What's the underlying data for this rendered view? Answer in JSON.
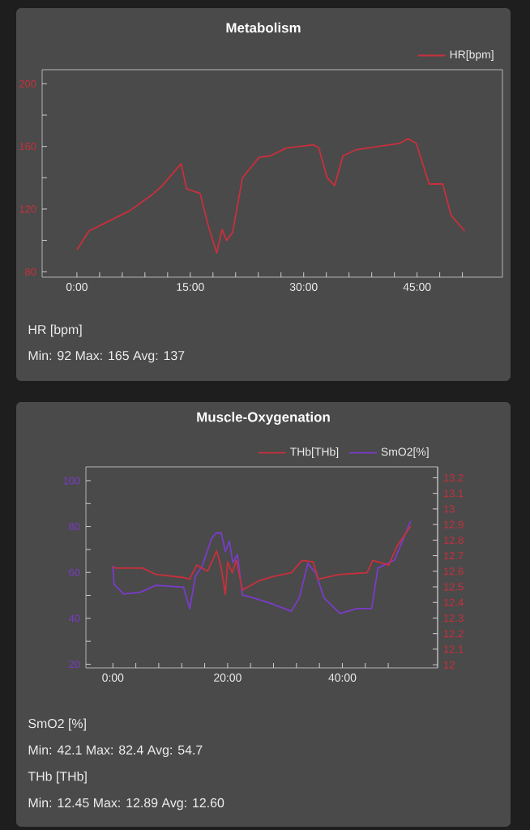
{
  "chart_data": [
    {
      "type": "line",
      "title": "Metabolism",
      "series": [
        {
          "name": "HR[bpm]",
          "color": "#c8303c",
          "x": [
            0,
            1.6,
            4.1,
            7,
            9.9,
            11.3,
            13.8,
            14.5,
            16.3,
            17.4,
            18.5,
            19.2,
            19.8,
            20.6,
            21.9,
            24.1,
            25.6,
            27.7,
            31.3,
            32,
            33.1,
            34.1,
            35.2,
            37,
            39.9,
            42.7,
            43.8,
            44.9,
            46.6,
            48.4,
            49.5,
            51.3
          ],
          "values": [
            94,
            106,
            112,
            119,
            129,
            135,
            149,
            133,
            130,
            109,
            92,
            107,
            100,
            105,
            140,
            153,
            154,
            159,
            161,
            159,
            140,
            135,
            154,
            158,
            160,
            162,
            165,
            162,
            136,
            136,
            116,
            106
          ]
        }
      ],
      "xlim": [
        -4.6,
        56.3
      ],
      "xticks": [
        {
          "value": 0,
          "label": "0:00"
        },
        {
          "value": 3,
          "label": null
        },
        {
          "value": 6,
          "label": null
        },
        {
          "value": 9,
          "label": null
        },
        {
          "value": 12,
          "label": null
        },
        {
          "value": 15,
          "label": "15:00"
        },
        {
          "value": 18,
          "label": null
        },
        {
          "value": 21,
          "label": null
        },
        {
          "value": 24,
          "label": null
        },
        {
          "value": 27,
          "label": null
        },
        {
          "value": 30,
          "label": "30:00"
        },
        {
          "value": 33,
          "label": null
        },
        {
          "value": 36,
          "label": null
        },
        {
          "value": 39,
          "label": null
        },
        {
          "value": 42,
          "label": null
        },
        {
          "value": 45,
          "label": "45:00"
        },
        {
          "value": 48,
          "label": null
        },
        {
          "value": 51,
          "label": null
        }
      ],
      "ylim": [
        76.5,
        209
      ],
      "yticks": [
        80,
        {
          "value": 100,
          "label": null
        },
        120,
        {
          "value": 140,
          "label": null
        },
        160,
        {
          "value": 180,
          "label": null
        },
        200
      ],
      "legend": "top right",
      "annotations": [
        "HR [bpm]",
        "Min: 92 Max: 165 Avg: 137"
      ]
    },
    {
      "type": "line",
      "title": "Muscle-Oxygenation",
      "series": [
        {
          "name": "THb[THb]",
          "color": "#c8303c",
          "axis": "y2",
          "x": [
            0,
            0.5,
            5.2,
            7.5,
            12.3,
            13.4,
            14.6,
            16.5,
            18.1,
            18.9,
            19.6,
            20,
            20.8,
            21.5,
            22.6,
            25.5,
            28.3,
            31.1,
            33,
            34.9,
            35.8,
            39.6,
            44.3,
            45.3,
            48.1,
            49.5,
            51.9
          ],
          "values": [
            12.63,
            12.62,
            12.62,
            12.58,
            12.56,
            12.55,
            12.64,
            12.6,
            12.73,
            12.62,
            12.45,
            12.66,
            12.59,
            12.67,
            12.48,
            12.54,
            12.57,
            12.59,
            12.67,
            12.66,
            12.55,
            12.58,
            12.59,
            12.67,
            12.64,
            12.76,
            12.89
          ]
        },
        {
          "name": "SmO2[%]",
          "color": "#7a3cc8",
          "x": [
            0,
            0.2,
            1.9,
            4.7,
            7.5,
            12.3,
            13.4,
            14.4,
            15.6,
            17.2,
            18,
            18.9,
            19.6,
            20.3,
            20.9,
            21.7,
            22.6,
            24.5,
            27.4,
            31.1,
            32.5,
            34,
            35.4,
            36.8,
            39.6,
            42.5,
            45.1,
            46.2,
            49.1,
            51.9
          ],
          "values": [
            63,
            54.8,
            50.6,
            51.3,
            54.4,
            53.6,
            44.2,
            58.4,
            63,
            74.8,
            77.2,
            77.2,
            69,
            73.6,
            64.2,
            67.8,
            50.1,
            48.9,
            46.6,
            43.1,
            49,
            64,
            59.5,
            48.9,
            42.1,
            44.2,
            44.2,
            61.9,
            65.4,
            82.4
          ]
        }
      ],
      "xlim": [
        -4.7,
        56.6
      ],
      "xticks": [
        {
          "value": 0,
          "label": "0:00"
        },
        {
          "value": 4,
          "label": null
        },
        {
          "value": 8,
          "label": null
        },
        {
          "value": 12,
          "label": null
        },
        {
          "value": 16,
          "label": null
        },
        {
          "value": 20,
          "label": "20:00"
        },
        {
          "value": 24,
          "label": null
        },
        {
          "value": 28,
          "label": null
        },
        {
          "value": 32,
          "label": null
        },
        {
          "value": 36,
          "label": null
        },
        {
          "value": 40,
          "label": "40:00"
        },
        {
          "value": 44,
          "label": null
        },
        {
          "value": 48,
          "label": null
        }
      ],
      "ylim": [
        18.4,
        106
      ],
      "yticks": [
        20,
        {
          "value": 30,
          "label": null
        },
        40,
        {
          "value": 50,
          "label": null
        },
        60,
        {
          "value": 70,
          "label": null
        },
        80,
        {
          "value": 90,
          "label": null
        },
        100
      ],
      "y2lim": [
        11.98,
        13.27
      ],
      "y2ticks": [
        12,
        12.1,
        12.2,
        12.3,
        12.4,
        12.5,
        12.6,
        12.7,
        12.8,
        12.9,
        13,
        13.1,
        13.2
      ],
      "legend": "top right",
      "annotations": [
        "SmO2 [%]",
        "Min: 42.1 Max: 82.4 Avg: 54.7",
        "THb [THb]",
        "Min: 12.45 Max: 12.89 Avg: 12.60"
      ]
    }
  ]
}
